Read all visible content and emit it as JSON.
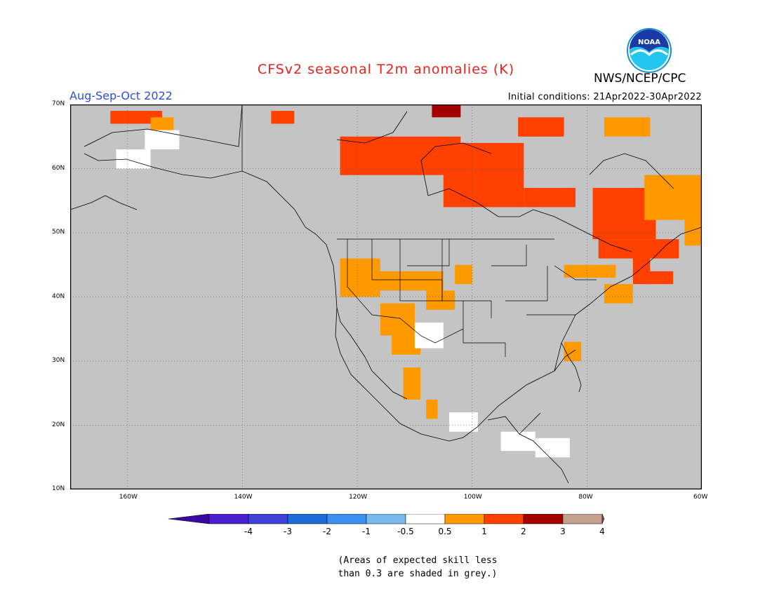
{
  "title": "CFSv2 seasonal T2m anomalies (K)",
  "season": "Aug-Sep-Oct 2022",
  "org": "NWS/NCEP/CPC",
  "logo_text": "NOAA",
  "initial_conditions": "Initial conditions: 21Apr2022-30Apr2022",
  "note_line1": "(Areas of expected skill less",
  "note_line2": "than 0.3 are shaded in grey.)",
  "colors": {
    "title": "#e8231c",
    "season": "#2f4fe0",
    "grey": "#c4c4c4",
    "white": "#ffffff",
    "c05_1": "#ff9900",
    "c1_2": "#ff4000",
    "c2_3": "#a50000",
    "border": "#000000"
  },
  "map": {
    "lon_range": [
      -170,
      -60
    ],
    "lat_range": [
      10,
      70
    ],
    "lat_labels": [
      "70N",
      "60N",
      "50N",
      "40N",
      "30N",
      "20N",
      "10N"
    ],
    "lat_values": [
      70,
      60,
      50,
      40,
      30,
      20,
      10
    ],
    "lon_labels": [
      "160W",
      "140W",
      "120W",
      "100W",
      "80W",
      "60W"
    ],
    "lon_values": [
      -160,
      -140,
      -120,
      -100,
      -80,
      -60
    ]
  },
  "colorbar": {
    "labels": [
      "-4",
      "-3",
      "-2",
      "-1",
      "-0.5",
      "0.5",
      "1",
      "2",
      "3",
      "4"
    ],
    "colors": [
      "#4a20d0",
      "#4040d8",
      "#1e6ad8",
      "#3a8ff0",
      "#7ab8f0",
      "#ffffff",
      "#ff9900",
      "#ff4000",
      "#a50000",
      "#c4a090"
    ],
    "end_left": "#3a0aa0",
    "end_right": "#7a5040"
  },
  "anomaly_cells": [
    {
      "lon": -163,
      "lat": 69,
      "w": 9,
      "h": 2,
      "cat": "c1_2"
    },
    {
      "lon": -156,
      "lat": 68,
      "w": 4,
      "h": 3,
      "cat": "c05_1"
    },
    {
      "lon": -157,
      "lat": 66,
      "w": 6,
      "h": 3,
      "cat": "white"
    },
    {
      "lon": -162,
      "lat": 63,
      "w": 6,
      "h": 3,
      "cat": "white"
    },
    {
      "lon": -135,
      "lat": 69,
      "w": 4,
      "h": 2,
      "cat": "c1_2"
    },
    {
      "lon": -123,
      "lat": 65,
      "w": 21,
      "h": 6,
      "cat": "c1_2"
    },
    {
      "lon": -105,
      "lat": 64,
      "w": 14,
      "h": 10,
      "cat": "c1_2"
    },
    {
      "lon": -92,
      "lat": 68,
      "w": 8,
      "h": 3,
      "cat": "c1_2"
    },
    {
      "lon": -107,
      "lat": 70,
      "w": 5,
      "h": 2,
      "cat": "c2_3"
    },
    {
      "lon": -91,
      "lat": 57,
      "w": 9,
      "h": 3,
      "cat": "c1_2"
    },
    {
      "lon": -79,
      "lat": 57,
      "w": 11,
      "h": 8,
      "cat": "c1_2"
    },
    {
      "lon": -70,
      "lat": 59,
      "w": 10,
      "h": 7,
      "cat": "c05_1"
    },
    {
      "lon": -63,
      "lat": 54,
      "w": 3,
      "h": 6,
      "cat": "c05_1"
    },
    {
      "lon": -72,
      "lat": 47,
      "w": 3,
      "h": 5,
      "cat": "c1_2"
    },
    {
      "lon": -77,
      "lat": 68,
      "w": 8,
      "h": 3,
      "cat": "c05_1"
    },
    {
      "lon": -78,
      "lat": 49,
      "w": 14,
      "h": 3,
      "cat": "c1_2"
    },
    {
      "lon": -123,
      "lat": 46,
      "w": 7,
      "h": 6,
      "cat": "c05_1"
    },
    {
      "lon": -118,
      "lat": 44,
      "w": 13,
      "h": 3,
      "cat": "c05_1"
    },
    {
      "lon": -116,
      "lat": 39,
      "w": 6,
      "h": 5,
      "cat": "c05_1"
    },
    {
      "lon": -114,
      "lat": 34,
      "w": 5,
      "h": 3,
      "cat": "c05_1"
    },
    {
      "lon": -110,
      "lat": 36,
      "w": 5,
      "h": 4,
      "cat": "white"
    },
    {
      "lon": -108,
      "lat": 41,
      "w": 5,
      "h": 3,
      "cat": "c05_1"
    },
    {
      "lon": -103,
      "lat": 45,
      "w": 3,
      "h": 3,
      "cat": "c05_1"
    },
    {
      "lon": -84,
      "lat": 45,
      "w": 9,
      "h": 2,
      "cat": "c05_1"
    },
    {
      "lon": -77,
      "lat": 42,
      "w": 5,
      "h": 3,
      "cat": "c05_1"
    },
    {
      "lon": -70,
      "lat": 44,
      "w": 5,
      "h": 2,
      "cat": "c1_2"
    },
    {
      "lon": -84,
      "lat": 33,
      "w": 3,
      "h": 3,
      "cat": "c05_1"
    },
    {
      "lon": -112,
      "lat": 29,
      "w": 3,
      "h": 5,
      "cat": "c05_1"
    },
    {
      "lon": -108,
      "lat": 24,
      "w": 2,
      "h": 3,
      "cat": "c05_1"
    },
    {
      "lon": -95,
      "lat": 19,
      "w": 6,
      "h": 3,
      "cat": "white"
    },
    {
      "lon": -89,
      "lat": 18,
      "w": 6,
      "h": 3,
      "cat": "white"
    },
    {
      "lon": -104,
      "lat": 22,
      "w": 5,
      "h": 3,
      "cat": "white"
    }
  ]
}
